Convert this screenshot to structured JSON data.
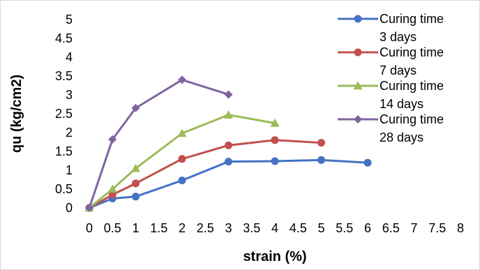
{
  "chart_data": {
    "type": "line",
    "title": "",
    "xlabel": "strain (%)",
    "ylabel": "qu (kg/cm2)",
    "xlim": [
      0,
      8
    ],
    "ylim": [
      0,
      5
    ],
    "x_ticks": [
      "0",
      "0.5",
      "1",
      "1.5",
      "2",
      "2.5",
      "3",
      "3.5",
      "4",
      "4.5",
      "5",
      "5.5",
      "6",
      "6.5",
      "7",
      "7.5",
      "8"
    ],
    "y_ticks": [
      "0",
      "0.5",
      "1",
      "1.5",
      "2",
      "2.5",
      "3",
      "3.5",
      "4",
      "4.5",
      "5"
    ],
    "grid": false,
    "legend_position": "top-right",
    "series": [
      {
        "name_lines": [
          "Curing time",
          "3 days"
        ],
        "color": "#4472c4",
        "marker": "circle",
        "points": [
          [
            0,
            0
          ],
          [
            0.5,
            0.25
          ],
          [
            1,
            0.3
          ],
          [
            2,
            0.73
          ],
          [
            3,
            1.23
          ],
          [
            4,
            1.24
          ],
          [
            5,
            1.27
          ],
          [
            6,
            1.2
          ]
        ]
      },
      {
        "name_lines": [
          "Curing time",
          "7 days"
        ],
        "color": "#c0504d",
        "marker": "circle",
        "points": [
          [
            0,
            0
          ],
          [
            0.5,
            0.35
          ],
          [
            1,
            0.65
          ],
          [
            2,
            1.3
          ],
          [
            3,
            1.66
          ],
          [
            4,
            1.8
          ],
          [
            5,
            1.73
          ]
        ]
      },
      {
        "name_lines": [
          "Curing time",
          "14 days"
        ],
        "color": "#9bbb59",
        "marker": "triangle",
        "points": [
          [
            0,
            0
          ],
          [
            0.5,
            0.5
          ],
          [
            1,
            1.05
          ],
          [
            2,
            1.98
          ],
          [
            3,
            2.47
          ],
          [
            4,
            2.25
          ]
        ]
      },
      {
        "name_lines": [
          "Curing time",
          "28 days"
        ],
        "color": "#8064a2",
        "marker": "diamond",
        "points": [
          [
            0,
            0
          ],
          [
            0.5,
            1.82
          ],
          [
            1,
            2.65
          ],
          [
            2,
            3.4
          ],
          [
            3,
            3.01
          ]
        ]
      }
    ]
  }
}
